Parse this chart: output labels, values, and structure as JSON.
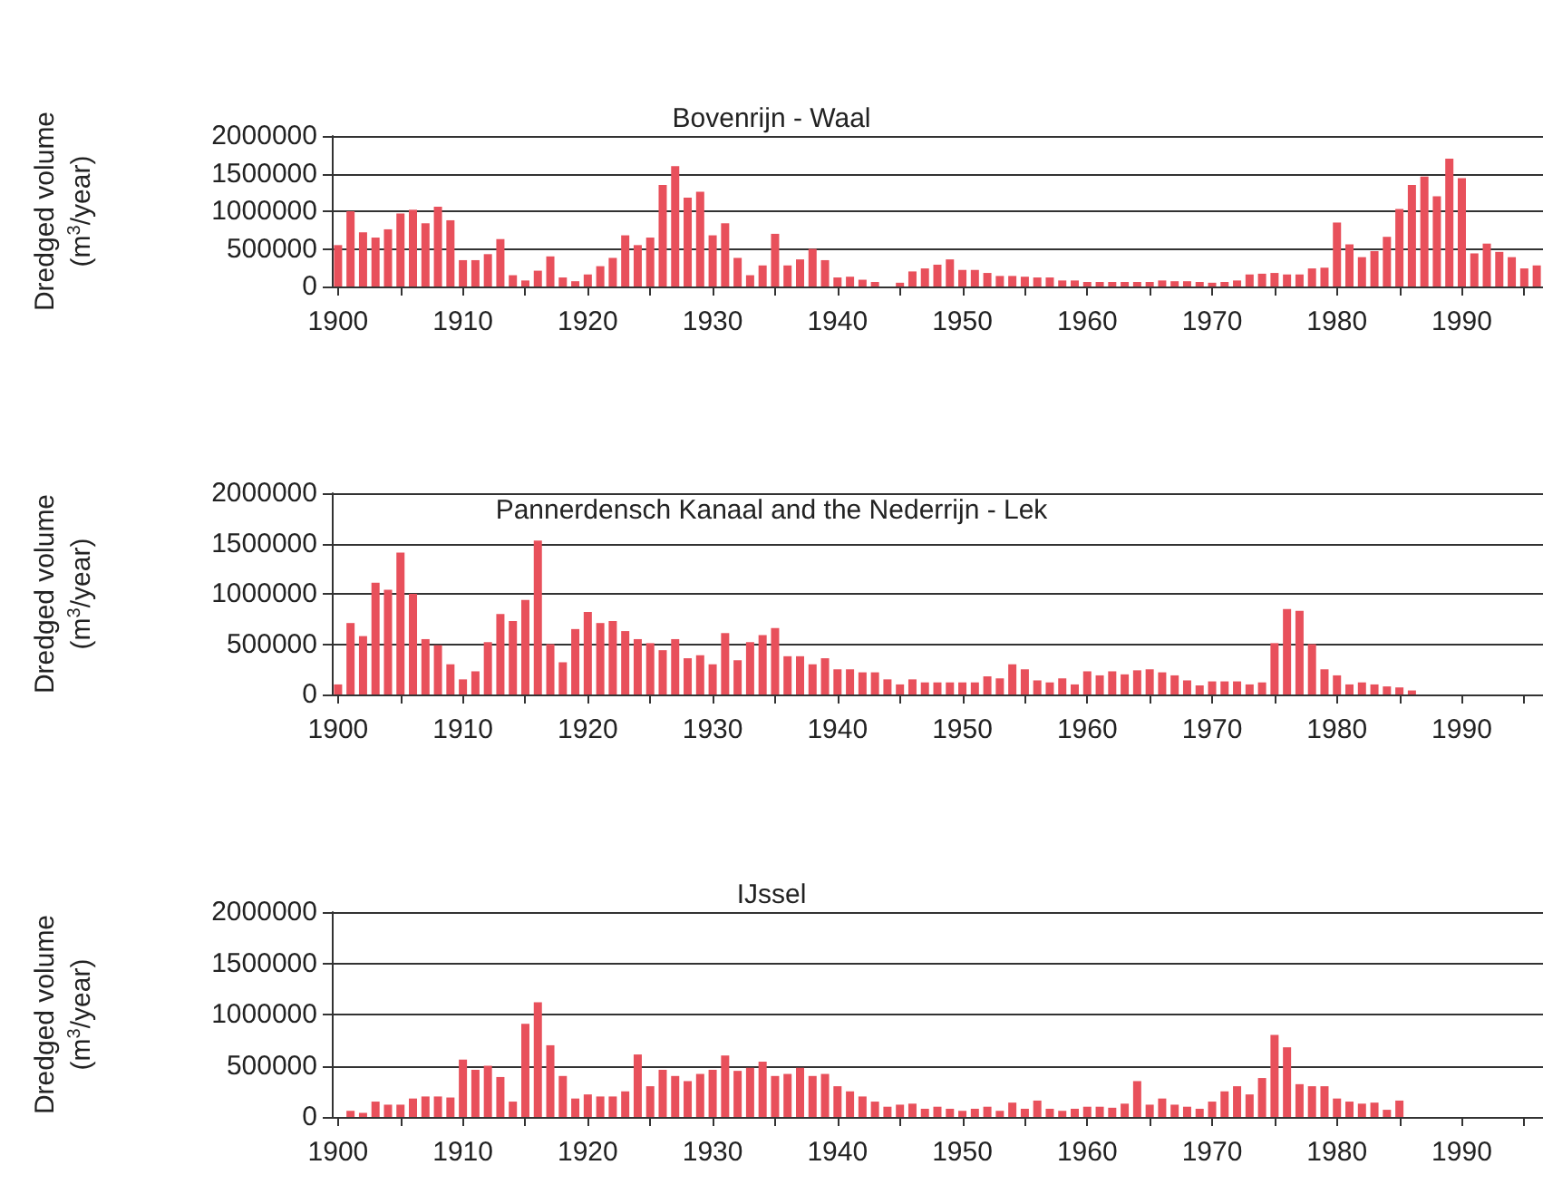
{
  "chart_data": [
    {
      "type": "bar",
      "title": "Bovenrijn - Waal",
      "ylabel": "Dredged volume\n(m$^{3}$/year)",
      "color": "#e8505b",
      "grid": "y",
      "x": [
        1900,
        1901,
        1902,
        1903,
        1904,
        1905,
        1906,
        1907,
        1908,
        1909,
        1910,
        1911,
        1912,
        1913,
        1914,
        1915,
        1916,
        1917,
        1918,
        1919,
        1920,
        1921,
        1922,
        1923,
        1924,
        1925,
        1926,
        1927,
        1928,
        1929,
        1930,
        1931,
        1932,
        1933,
        1934,
        1935,
        1936,
        1937,
        1938,
        1939,
        1940,
        1941,
        1942,
        1943,
        1944,
        1945,
        1946,
        1947,
        1948,
        1949,
        1950,
        1951,
        1952,
        1953,
        1954,
        1955,
        1956,
        1957,
        1958,
        1959,
        1960,
        1961,
        1962,
        1963,
        1964,
        1965,
        1966,
        1967,
        1968,
        1969,
        1970,
        1971,
        1972,
        1973,
        1974,
        1975,
        1976,
        1977,
        1978,
        1979,
        1980,
        1981,
        1982,
        1983,
        1984,
        1985,
        1986,
        1987,
        1988,
        1989,
        1990,
        1991,
        1992,
        1993,
        1994,
        1995,
        1996
      ],
      "values": [
        550000,
        1000000,
        720000,
        650000,
        760000,
        970000,
        1020000,
        840000,
        1060000,
        880000,
        350000,
        350000,
        430000,
        630000,
        150000,
        80000,
        210000,
        400000,
        120000,
        70000,
        160000,
        270000,
        380000,
        680000,
        550000,
        650000,
        1350000,
        1600000,
        1180000,
        1260000,
        680000,
        840000,
        380000,
        150000,
        280000,
        700000,
        280000,
        360000,
        500000,
        350000,
        120000,
        130000,
        90000,
        60000,
        null,
        50000,
        200000,
        240000,
        290000,
        360000,
        220000,
        220000,
        180000,
        140000,
        140000,
        130000,
        120000,
        120000,
        80000,
        80000,
        60000,
        60000,
        60000,
        60000,
        60000,
        60000,
        80000,
        70000,
        70000,
        60000,
        50000,
        60000,
        80000,
        160000,
        170000,
        180000,
        160000,
        160000,
        240000,
        250000,
        850000,
        560000,
        390000,
        470000,
        660000,
        1030000,
        1350000,
        1460000,
        1200000,
        1700000,
        1440000,
        440000,
        570000,
        460000,
        390000,
        240000,
        280000
      ],
      "xlim": [
        1899.5,
        1996.5
      ],
      "xticks": [
        1900,
        {
          "value": 1905,
          "label": null
        },
        1910,
        {
          "value": 1915,
          "label": null
        },
        1920,
        {
          "value": 1925,
          "label": null
        },
        1930,
        {
          "value": 1935,
          "label": null
        },
        1940,
        {
          "value": 1945,
          "label": null
        },
        1950,
        {
          "value": 1955,
          "label": null
        },
        1960,
        {
          "value": 1965,
          "label": null
        },
        1970,
        {
          "value": 1975,
          "label": null
        },
        1980,
        {
          "value": 1985,
          "label": null
        },
        1990,
        {
          "value": 1995,
          "label": null
        }
      ],
      "ylim": [
        0,
        2000000
      ],
      "yticks": [
        0,
        500000,
        1000000,
        1500000,
        2000000
      ]
    },
    {
      "type": "bar",
      "title": "Pannerdensch Kanaal and the Nederrijn - Lek",
      "ylabel": "Dredged volume\n(m$^{3}$/year)",
      "color": "#e8505b",
      "grid": "y",
      "x": [
        1900,
        1901,
        1902,
        1903,
        1904,
        1905,
        1906,
        1907,
        1908,
        1909,
        1910,
        1911,
        1912,
        1913,
        1914,
        1915,
        1916,
        1917,
        1918,
        1919,
        1920,
        1921,
        1922,
        1923,
        1924,
        1925,
        1926,
        1927,
        1928,
        1929,
        1930,
        1931,
        1932,
        1933,
        1934,
        1935,
        1936,
        1937,
        1938,
        1939,
        1940,
        1941,
        1942,
        1943,
        1944,
        1945,
        1946,
        1947,
        1948,
        1949,
        1950,
        1951,
        1952,
        1953,
        1954,
        1955,
        1956,
        1957,
        1958,
        1959,
        1960,
        1961,
        1962,
        1963,
        1964,
        1965,
        1966,
        1967,
        1968,
        1969,
        1970,
        1971,
        1972,
        1973,
        1974,
        1975,
        1976,
        1977,
        1978,
        1979,
        1980,
        1981,
        1982,
        1983,
        1984,
        1985,
        1986
      ],
      "values": [
        100000,
        710000,
        580000,
        1110000,
        1040000,
        1410000,
        1000000,
        550000,
        490000,
        300000,
        150000,
        230000,
        520000,
        800000,
        730000,
        940000,
        1530000,
        500000,
        320000,
        650000,
        820000,
        710000,
        730000,
        630000,
        550000,
        510000,
        440000,
        550000,
        360000,
        390000,
        300000,
        610000,
        340000,
        520000,
        590000,
        660000,
        380000,
        380000,
        300000,
        360000,
        250000,
        250000,
        220000,
        220000,
        150000,
        100000,
        150000,
        120000,
        120000,
        120000,
        120000,
        120000,
        180000,
        160000,
        300000,
        250000,
        140000,
        120000,
        160000,
        100000,
        230000,
        190000,
        230000,
        200000,
        240000,
        250000,
        220000,
        190000,
        140000,
        90000,
        130000,
        130000,
        130000,
        100000,
        120000,
        510000,
        850000,
        830000,
        500000,
        250000,
        190000,
        100000,
        120000,
        100000,
        80000,
        70000,
        40000
      ],
      "xlim": [
        1899.5,
        1996.5
      ],
      "xticks": [
        1900,
        {
          "value": 1905,
          "label": null
        },
        1910,
        {
          "value": 1915,
          "label": null
        },
        1920,
        {
          "value": 1925,
          "label": null
        },
        1930,
        {
          "value": 1935,
          "label": null
        },
        1940,
        {
          "value": 1945,
          "label": null
        },
        1950,
        {
          "value": 1955,
          "label": null
        },
        1960,
        {
          "value": 1965,
          "label": null
        },
        1970,
        {
          "value": 1975,
          "label": null
        },
        1980,
        {
          "value": 1985,
          "label": null
        },
        1990,
        {
          "value": 1995,
          "label": null
        }
      ],
      "ylim": [
        0,
        2000000
      ],
      "yticks": [
        0,
        500000,
        1000000,
        1500000,
        2000000
      ]
    },
    {
      "type": "bar",
      "title": "IJssel",
      "ylabel": "Dredged volume\n(m$^{3}$/year)",
      "color": "#e8505b",
      "grid": "y",
      "x": [
        1901,
        1902,
        1903,
        1904,
        1905,
        1906,
        1907,
        1908,
        1909,
        1910,
        1911,
        1912,
        1913,
        1914,
        1915,
        1916,
        1917,
        1918,
        1919,
        1920,
        1921,
        1922,
        1923,
        1924,
        1925,
        1926,
        1927,
        1928,
        1929,
        1930,
        1931,
        1932,
        1933,
        1934,
        1935,
        1936,
        1937,
        1938,
        1939,
        1940,
        1941,
        1942,
        1943,
        1944,
        1945,
        1946,
        1947,
        1948,
        1949,
        1950,
        1951,
        1952,
        1953,
        1954,
        1955,
        1956,
        1957,
        1958,
        1959,
        1960,
        1961,
        1962,
        1963,
        1964,
        1965,
        1966,
        1967,
        1968,
        1969,
        1970,
        1971,
        1972,
        1973,
        1974,
        1975,
        1976,
        1977,
        1978,
        1979,
        1980,
        1981,
        1982,
        1983,
        1984,
        1985
      ],
      "values": [
        60000,
        40000,
        150000,
        120000,
        120000,
        180000,
        200000,
        200000,
        190000,
        560000,
        460000,
        500000,
        390000,
        150000,
        910000,
        1120000,
        700000,
        400000,
        180000,
        220000,
        200000,
        200000,
        250000,
        610000,
        300000,
        460000,
        400000,
        350000,
        420000,
        460000,
        600000,
        450000,
        480000,
        540000,
        400000,
        420000,
        480000,
        400000,
        420000,
        300000,
        250000,
        200000,
        150000,
        100000,
        120000,
        130000,
        80000,
        100000,
        80000,
        60000,
        80000,
        100000,
        60000,
        140000,
        80000,
        160000,
        80000,
        60000,
        80000,
        100000,
        100000,
        90000,
        130000,
        350000,
        120000,
        180000,
        120000,
        100000,
        80000,
        150000,
        250000,
        300000,
        220000,
        380000,
        800000,
        680000,
        320000,
        300000,
        300000,
        180000,
        150000,
        130000,
        140000,
        70000,
        160000
      ],
      "xlim": [
        1899.5,
        1996.5
      ],
      "xticks": [
        1900,
        {
          "value": 1905,
          "label": null
        },
        1910,
        {
          "value": 1915,
          "label": null
        },
        1920,
        {
          "value": 1925,
          "label": null
        },
        1930,
        {
          "value": 1935,
          "label": null
        },
        1940,
        {
          "value": 1945,
          "label": null
        },
        1950,
        {
          "value": 1955,
          "label": null
        },
        1960,
        {
          "value": 1965,
          "label": null
        },
        1970,
        {
          "value": 1975,
          "label": null
        },
        1980,
        {
          "value": 1985,
          "label": null
        },
        1990,
        {
          "value": 1995,
          "label": null
        }
      ],
      "ylim": [
        0,
        2000000
      ],
      "yticks": [
        0,
        500000,
        1000000,
        1500000,
        2000000
      ]
    }
  ]
}
